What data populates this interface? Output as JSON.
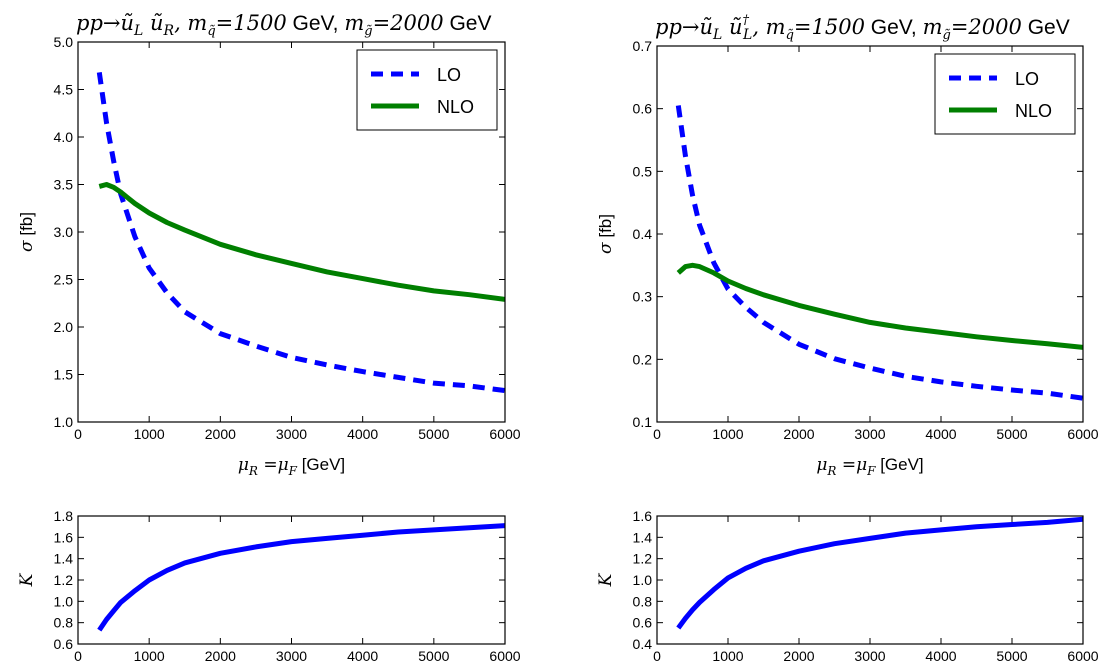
{
  "colors": {
    "lo": "#0000ff",
    "nlo": "#007f00",
    "k": "#0000ff"
  },
  "legend": {
    "lo": "LO",
    "nlo": "NLO"
  },
  "chart_data": [
    {
      "type": "line",
      "title": {
        "proc": "pp→ũ",
        "p1sub": "L",
        "p2": " ũ",
        "p2sub": "R",
        "p2sup": "",
        "mq": ", m",
        "q_mid": "=1500",
        "gev1": " GeV, ",
        "mg": "m",
        "g_mid": "=2000",
        "gev2": " GeV"
      },
      "xlabel": {
        "var": "μ",
        "v1sub": "R",
        "mid": " =μ",
        "v2sub": "F",
        "unit": " [GeV]"
      },
      "ylabel": "σ [fb]",
      "xlim": [
        0,
        6000
      ],
      "ylim": [
        1.0,
        5.0
      ],
      "xticks": [
        "0",
        "1000",
        "2000",
        "3000",
        "4000",
        "5000",
        "6000"
      ],
      "yticks": [
        "1.0",
        "1.5",
        "2.0",
        "2.5",
        "3.0",
        "3.5",
        "4.0",
        "4.5",
        "5.0"
      ],
      "legend_position": "top-right",
      "x": [
        300,
        400,
        500,
        600,
        800,
        1000,
        1250,
        1500,
        2000,
        2500,
        3000,
        3500,
        4000,
        4500,
        5000,
        5500,
        6000
      ],
      "series": [
        {
          "name": "LO",
          "style": "dashed",
          "values": [
            4.68,
            4.15,
            3.75,
            3.4,
            2.95,
            2.62,
            2.36,
            2.16,
            1.93,
            1.8,
            1.68,
            1.6,
            1.53,
            1.47,
            1.41,
            1.38,
            1.33
          ]
        },
        {
          "name": "NLO",
          "style": "solid",
          "values": [
            3.48,
            3.5,
            3.47,
            3.42,
            3.3,
            3.2,
            3.1,
            3.02,
            2.87,
            2.76,
            2.67,
            2.58,
            2.51,
            2.44,
            2.38,
            2.34,
            2.29
          ]
        }
      ]
    },
    {
      "type": "line",
      "title": {
        "proc": "pp→ũ",
        "p1sub": "L",
        "p2": " ũ",
        "p2sub": "L",
        "p2sup": "†",
        "mq": ", m",
        "q_mid": "=1500",
        "gev1": " GeV, ",
        "mg": "m",
        "g_mid": "=2000",
        "gev2": " GeV"
      },
      "xlabel": {
        "var": "μ",
        "v1sub": "R",
        "mid": " =μ",
        "v2sub": "F",
        "unit": " [GeV]"
      },
      "ylabel": "σ [fb]",
      "xlim": [
        0,
        6000
      ],
      "ylim": [
        0.1,
        0.7
      ],
      "xticks": [
        "0",
        "1000",
        "2000",
        "3000",
        "4000",
        "5000",
        "6000"
      ],
      "yticks": [
        "0.1",
        "0.2",
        "0.3",
        "0.4",
        "0.5",
        "0.6",
        "0.7"
      ],
      "legend_position": "top-right",
      "x": [
        300,
        400,
        500,
        600,
        800,
        1000,
        1250,
        1500,
        2000,
        2500,
        3000,
        3500,
        4000,
        4500,
        5000,
        5500,
        6000
      ],
      "series": [
        {
          "name": "LO",
          "style": "dashed",
          "values": [
            0.605,
            0.525,
            0.462,
            0.414,
            0.354,
            0.312,
            0.283,
            0.259,
            0.224,
            0.201,
            0.186,
            0.173,
            0.164,
            0.157,
            0.151,
            0.146,
            0.138
          ]
        },
        {
          "name": "NLO",
          "style": "solid",
          "values": [
            0.338,
            0.348,
            0.35,
            0.348,
            0.338,
            0.325,
            0.313,
            0.303,
            0.286,
            0.272,
            0.259,
            0.25,
            0.243,
            0.236,
            0.23,
            0.225,
            0.219
          ]
        }
      ]
    },
    {
      "type": "line",
      "title": "",
      "xlabel": "",
      "ylabel": "K",
      "xlim": [
        0,
        6000
      ],
      "ylim": [
        0.6,
        1.8
      ],
      "xticks": [
        "0",
        "1000",
        "2000",
        "3000",
        "4000",
        "5000",
        "6000"
      ],
      "yticks": [
        "0.6",
        "0.8",
        "1.0",
        "1.2",
        "1.4",
        "1.6",
        "1.8"
      ],
      "x": [
        300,
        400,
        500,
        600,
        800,
        1000,
        1250,
        1500,
        2000,
        2500,
        3000,
        3500,
        4000,
        4500,
        5000,
        5500,
        6000
      ],
      "series": [
        {
          "name": "",
          "style": "solid",
          "values": [
            0.73,
            0.83,
            0.91,
            0.99,
            1.1,
            1.2,
            1.29,
            1.36,
            1.45,
            1.51,
            1.56,
            1.59,
            1.62,
            1.65,
            1.67,
            1.69,
            1.71
          ]
        }
      ]
    },
    {
      "type": "line",
      "title": "",
      "xlabel": "",
      "ylabel": "K",
      "xlim": [
        0,
        6000
      ],
      "ylim": [
        0.4,
        1.6
      ],
      "xticks": [
        "0",
        "1000",
        "2000",
        "3000",
        "4000",
        "5000",
        "6000"
      ],
      "yticks": [
        "0.4",
        "0.6",
        "0.8",
        "1.0",
        "1.2",
        "1.4",
        "1.6"
      ],
      "x": [
        300,
        400,
        500,
        600,
        800,
        1000,
        1250,
        1500,
        2000,
        2500,
        3000,
        3500,
        4000,
        4500,
        5000,
        5500,
        6000
      ],
      "series": [
        {
          "name": "",
          "style": "solid",
          "values": [
            0.55,
            0.64,
            0.72,
            0.79,
            0.91,
            1.02,
            1.11,
            1.18,
            1.27,
            1.34,
            1.39,
            1.44,
            1.47,
            1.5,
            1.52,
            1.54,
            1.57
          ]
        }
      ]
    }
  ]
}
